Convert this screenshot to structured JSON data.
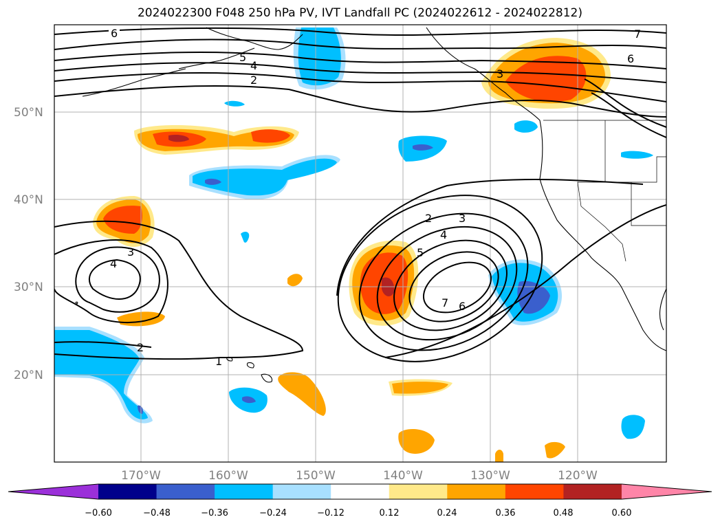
{
  "title": "2024022300 F048 250 hPa PV, IVT Landfall PC (2024022612 - 2024022812)",
  "map": {
    "lat_labels": [
      "50°N",
      "40°N",
      "30°N",
      "20°N"
    ],
    "lon_labels": [
      "170°W",
      "160°W",
      "150°W",
      "140°W",
      "130°W",
      "120°W"
    ],
    "contour_labels": [
      "6",
      "5",
      "4",
      "2",
      "3",
      "7",
      "6",
      "2",
      "3",
      "4",
      "5",
      "7",
      "6",
      "3",
      "4",
      "2",
      "1"
    ]
  },
  "colorbar": {
    "tick_labels": [
      "−0.60",
      "−0.48",
      "−0.36",
      "−0.24",
      "−0.12",
      "0.12",
      "0.24",
      "0.36",
      "0.48",
      "0.60"
    ],
    "colors": [
      "#9b30d9",
      "#00008b",
      "#3a5fcd",
      "#00bfff",
      "#a8e0ff",
      "#ffffff",
      "#ffe98a",
      "#ffa500",
      "#ff4500",
      "#b22222",
      "#ff85a8"
    ]
  }
}
